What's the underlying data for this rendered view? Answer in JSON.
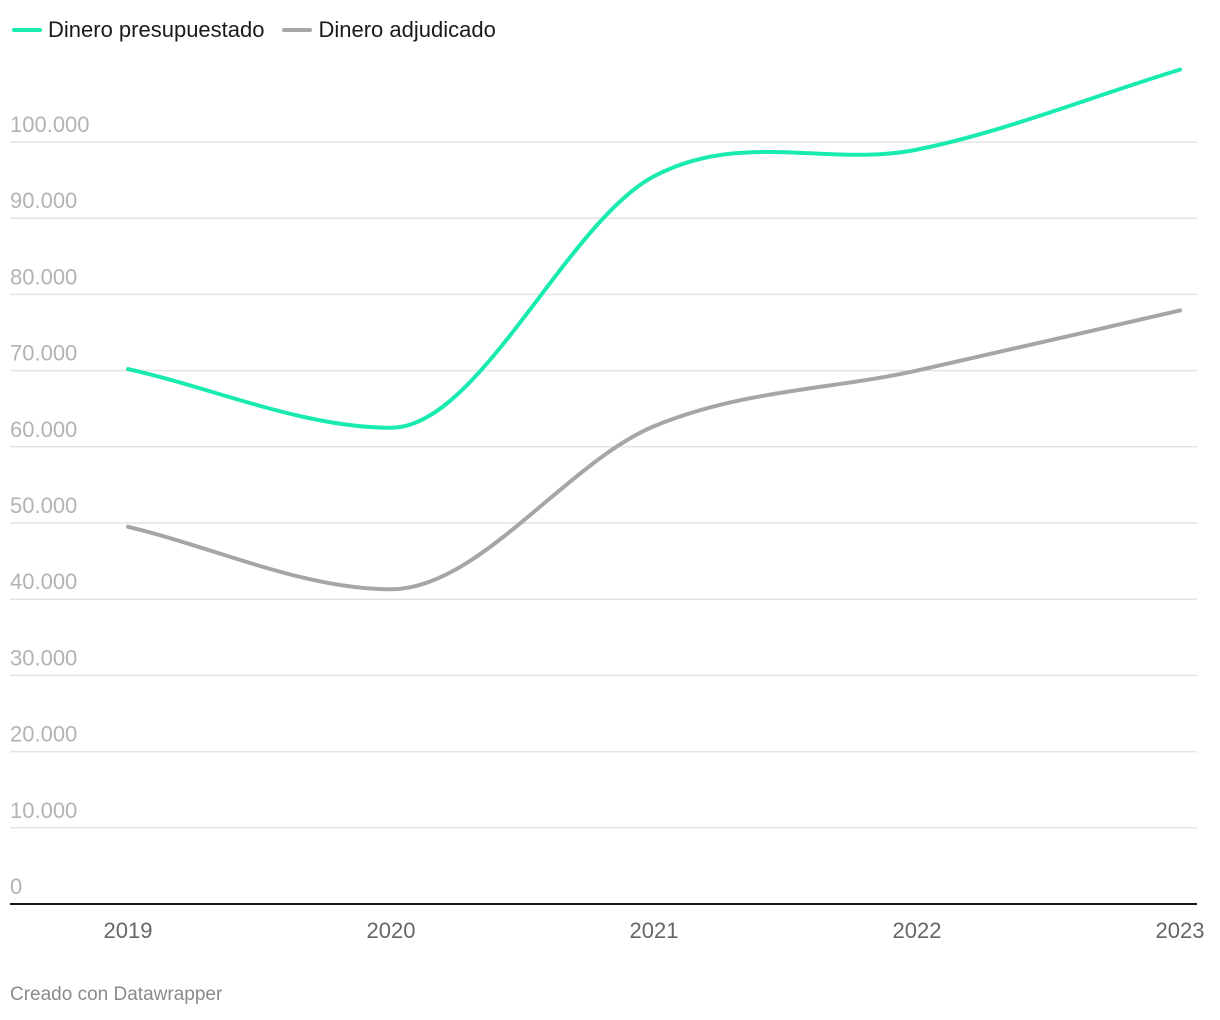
{
  "chart_data": {
    "type": "line",
    "title": "",
    "xlabel": "",
    "ylabel": "",
    "categories": [
      "2019",
      "2020",
      "2021",
      "2022",
      "2023"
    ],
    "yticks": [
      "0",
      "10.000",
      "20.000",
      "30.000",
      "40.000",
      "50.000",
      "60.000",
      "70.000",
      "80.000",
      "90.000",
      "100.000"
    ],
    "ylim": [
      0,
      100000
    ],
    "grid": true,
    "legend_position": "top-left",
    "series": [
      {
        "name": "Dinero presupuestado",
        "color": "#19ebb0",
        "values": [
          70200,
          62500,
          95500,
          99000,
          109500
        ]
      },
      {
        "name": "Dinero adjudicado",
        "color": "#a6a6a6",
        "values": [
          49500,
          41300,
          62700,
          70000,
          77900
        ]
      }
    ]
  },
  "footer": {
    "credit": "Creado con Datawrapper"
  }
}
